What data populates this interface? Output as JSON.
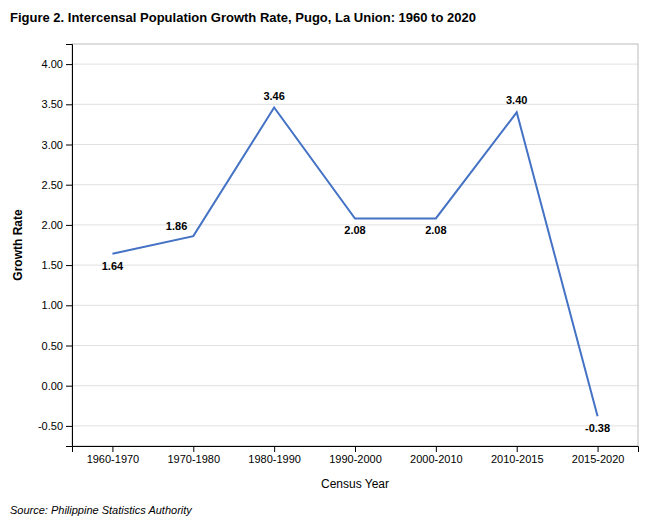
{
  "chart_data": {
    "type": "line",
    "title": "Figure 2. Intercensal Population Growth Rate, Pugo, La Union: 1960 to 2020",
    "categories": [
      "1960-1970",
      "1970-1980",
      "1980-1990",
      "1990-2000",
      "2000-2010",
      "2010-2015",
      "2015-2020"
    ],
    "values": [
      1.64,
      1.86,
      3.46,
      2.08,
      2.08,
      3.4,
      -0.38
    ],
    "value_labels": [
      "1.64",
      "1.86",
      "3.46",
      "2.08",
      "2.08",
      "3.40",
      "-0.38"
    ],
    "data_labels": true,
    "color": "#4472C4",
    "xlabel": "Census Year",
    "ylabel": "Growth Rate",
    "ylim": [
      -0.75,
      4.25
    ],
    "yticks": [
      {
        "value": -0.5,
        "label": "-0.50"
      },
      {
        "value": 0,
        "label": "0.00"
      },
      {
        "value": 0.5,
        "label": "0.50"
      },
      {
        "value": 1,
        "label": "1.00"
      },
      {
        "value": 1.5,
        "label": "1.50"
      },
      {
        "value": 2,
        "label": "2.00"
      },
      {
        "value": 2.5,
        "label": "2.50"
      },
      {
        "value": 3,
        "label": "3.00"
      },
      {
        "value": 3.5,
        "label": "3.50"
      },
      {
        "value": 4,
        "label": "4.00"
      }
    ],
    "grid": true,
    "annotations": [
      "Source: Philippine Statistics Authority"
    ]
  }
}
